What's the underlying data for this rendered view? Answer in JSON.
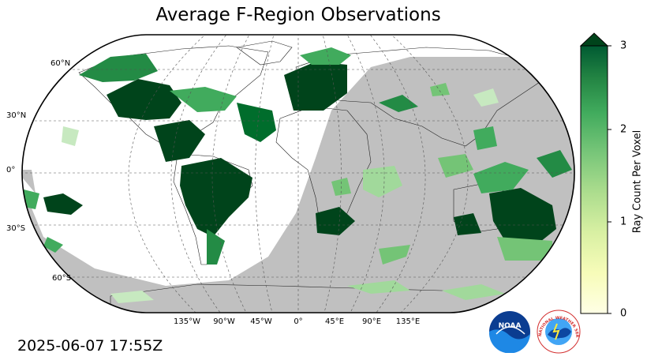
{
  "title": "Average F-Region Observations",
  "timestamp": "2025-06-07 17:55Z",
  "map": {
    "projection": "Robinson",
    "night_shading_color": "#c0c0c0",
    "lat_labels": [
      "60°N",
      "30°N",
      "0°",
      "30°S",
      "60°S"
    ],
    "lon_labels": [
      "135°W",
      "90°W",
      "45°W",
      "0°",
      "45°E",
      "90°E",
      "135°E"
    ],
    "colormap": "Greens"
  },
  "colorbar": {
    "label": "Ray Count Per Voxel",
    "ticks": [
      "0",
      "1",
      "2",
      "3"
    ],
    "range": [
      0,
      3
    ],
    "extend": "max",
    "low_color": "#ffffe5",
    "high_color": "#00441b"
  },
  "logos": {
    "noaa_text": "NOAA",
    "nws_text": "NATIONAL WEATHER SERVICE"
  }
}
